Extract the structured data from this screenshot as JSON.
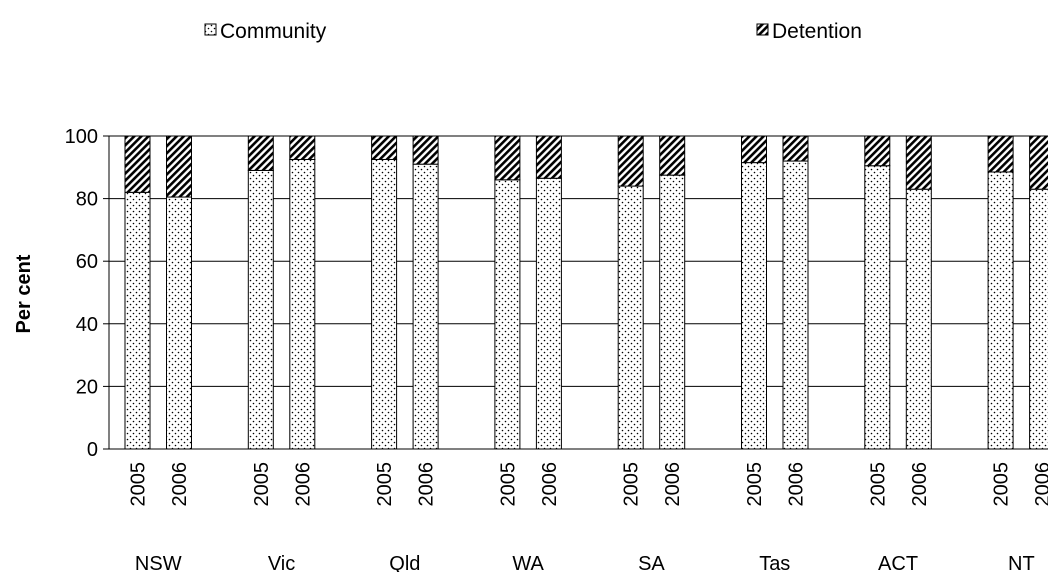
{
  "chart_data": {
    "type": "bar",
    "stacked": true,
    "percent_stacked": true,
    "title": "",
    "xlabel": "",
    "ylabel": "Per cent",
    "ylim": [
      0,
      100
    ],
    "yticks": [
      0,
      20,
      40,
      60,
      80,
      100
    ],
    "grid": "horizontal",
    "legend_position": "top",
    "groups": [
      {
        "label": "NSW",
        "categories": [
          "2005",
          "2006"
        ]
      },
      {
        "label": "Vic",
        "categories": [
          "2005",
          "2006"
        ]
      },
      {
        "label": "Qld",
        "categories": [
          "2005",
          "2006"
        ]
      },
      {
        "label": "WA",
        "categories": [
          "2005",
          "2006"
        ]
      },
      {
        "label": "SA",
        "categories": [
          "2005",
          "2006"
        ]
      },
      {
        "label": "Tas",
        "categories": [
          "2005",
          "2006"
        ]
      },
      {
        "label": "ACT",
        "categories": [
          "2005",
          "2006"
        ]
      },
      {
        "label": "NT",
        "categories": [
          "2005",
          "2006"
        ]
      }
    ],
    "series": [
      {
        "name": "Community",
        "pattern": "dots",
        "values": [
          82,
          80.5,
          89,
          92.5,
          92.5,
          91,
          86,
          86.5,
          84,
          87.5,
          91.5,
          92,
          90.5,
          83,
          88.5,
          83
        ]
      },
      {
        "name": "Detention",
        "pattern": "diagonal-hatch",
        "values": [
          18,
          19.5,
          11,
          7.5,
          7.5,
          9,
          14,
          13.5,
          16,
          12.5,
          8.5,
          8,
          9.5,
          17,
          11.5,
          17
        ]
      }
    ],
    "colors": {
      "fill": "#ffffff",
      "stroke": "#000000",
      "grid": "#000000"
    }
  }
}
